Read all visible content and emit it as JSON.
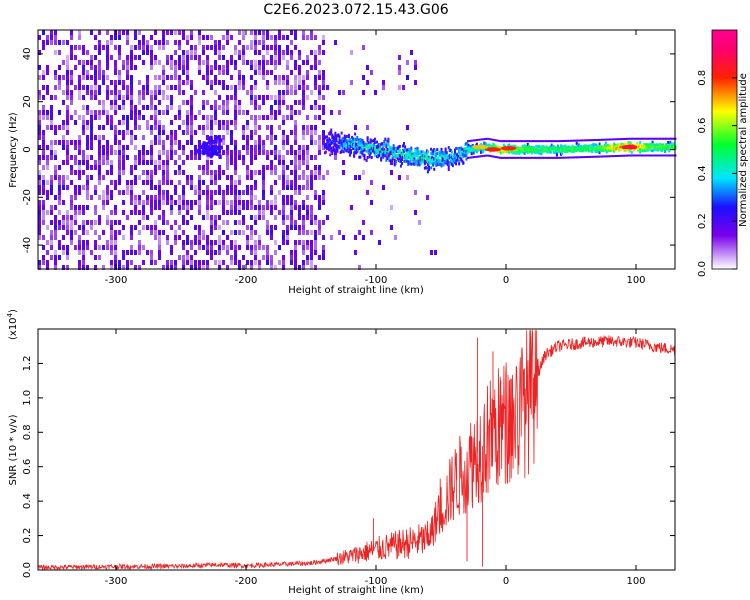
{
  "figure_title": "C2E6.2023.072.15.43.G06",
  "chart_data": [
    {
      "type": "heatmap",
      "title": "C2E6.2023.072.15.43.G06",
      "xlabel": "Height of straight line (km)",
      "ylabel": "Frequency (Hz)",
      "xlim": [
        -360,
        130
      ],
      "ylim": [
        -50,
        50
      ],
      "x_ticks": [
        -300,
        -200,
        -100,
        0,
        100
      ],
      "x_tick_labels": [
        "-300",
        "-200",
        "-100",
        "0",
        "100"
      ],
      "y_ticks": [
        -40,
        -20,
        0,
        20,
        40
      ],
      "y_tick_labels": [
        "-40",
        "-20",
        "0",
        "20",
        "40"
      ],
      "colorbar": {
        "label": "Normalized spectral amplitude",
        "range": [
          0,
          1
        ],
        "ticks": [
          0.0,
          0.2,
          0.4,
          0.6,
          0.8
        ],
        "tick_labels": [
          "0.0",
          "0.2",
          "0.4",
          "0.6",
          "0.8"
        ],
        "colormap": "rainbow (white-violet-blue-cyan-green-yellow-red-magenta)"
      },
      "features": {
        "noise_region_km": [
          -360,
          -140
        ],
        "noise_freq_range_hz": [
          -50,
          50
        ],
        "noise_amplitude": 0.15,
        "secondary_blob_km": -228,
        "secondary_blob_freq_hz": 1,
        "signal_track": [
          {
            "x": -140,
            "freq": 3,
            "amp": 0.25
          },
          {
            "x": -120,
            "freq": 2,
            "amp": 0.4
          },
          {
            "x": -100,
            "freq": 0,
            "amp": 0.45
          },
          {
            "x": -80,
            "freq": -2,
            "amp": 0.45
          },
          {
            "x": -60,
            "freq": -4,
            "amp": 0.45
          },
          {
            "x": -40,
            "freq": -3,
            "amp": 0.4
          },
          {
            "x": -30,
            "freq": 0,
            "amp": 0.45
          },
          {
            "x": -15,
            "freq": 1,
            "amp": 0.55
          },
          {
            "x": -5,
            "freq": 0,
            "amp": 0.75
          },
          {
            "x": 10,
            "freq": 0,
            "amp": 0.6
          },
          {
            "x": 40,
            "freq": 0,
            "amp": 0.55
          },
          {
            "x": 70,
            "freq": 0.5,
            "amp": 0.55
          },
          {
            "x": 95,
            "freq": 1,
            "amp": 0.9
          },
          {
            "x": 110,
            "freq": 1,
            "amp": 0.6
          },
          {
            "x": 130,
            "freq": 1,
            "amp": 0.55
          }
        ]
      }
    },
    {
      "type": "line",
      "xlabel": "Height of straight line (km)",
      "ylabel": "SNR (10 * v/v)",
      "scale_label": "(x10",
      "scale_exponent": "4",
      "scale_close": ")",
      "xlim": [
        -360,
        130
      ],
      "ylim": [
        0,
        14000
      ],
      "x_ticks": [
        -300,
        -200,
        -100,
        0,
        100
      ],
      "x_tick_labels": [
        "-300",
        "-200",
        "-100",
        "0",
        "100"
      ],
      "y_ticks": [
        0,
        2000,
        4000,
        6000,
        8000,
        10000,
        12000
      ],
      "y_tick_labels": [
        "0.0",
        "0.2",
        "0.4",
        "0.6",
        "0.8",
        "1.0",
        "1.2"
      ],
      "series": [
        {
          "name": "SNR",
          "color": "#ee2222",
          "envelope_x": [
            -360,
            -300,
            -250,
            -220,
            -200,
            -150,
            -120,
            -100,
            -80,
            -60,
            -50,
            -40,
            -30,
            -20,
            -15,
            -10,
            0,
            10,
            20,
            30,
            40,
            60,
            80,
            100,
            120,
            130
          ],
          "envelope_y": [
            150,
            200,
            220,
            300,
            250,
            400,
            800,
            1200,
            1500,
            1800,
            3500,
            5000,
            6000,
            7000,
            7500,
            8000,
            8500,
            9000,
            10500,
            12500,
            13000,
            13200,
            13300,
            13200,
            12900,
            12800
          ],
          "noise_fraction": 0.25,
          "spikes": [
            {
              "x": -22,
              "y": 13500
            },
            {
              "x": -10,
              "y": 12700
            },
            {
              "x": -4,
              "y": 11000
            },
            {
              "x": -38,
              "y": 6800
            },
            {
              "x": -102,
              "y": 3000
            },
            {
              "x": -45,
              "y": 4200
            }
          ],
          "dropouts": [
            {
              "x": -30,
              "y": 500
            },
            {
              "x": -18,
              "y": 200
            }
          ]
        }
      ]
    }
  ]
}
